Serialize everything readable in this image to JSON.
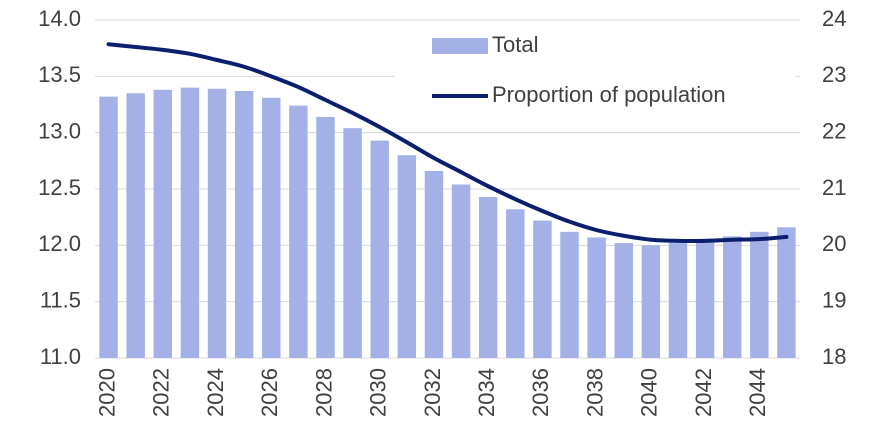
{
  "chart_data": {
    "type": "bar_line",
    "categories": [
      "2020",
      null,
      "2022",
      null,
      "2024",
      null,
      "2026",
      null,
      "2028",
      null,
      "2030",
      null,
      "2032",
      null,
      "2034",
      null,
      "2036",
      null,
      "2038",
      null,
      "2040",
      null,
      "2042",
      null,
      "2044",
      null
    ],
    "series": [
      {
        "name": "Total",
        "type": "bar",
        "color": "#a3b1e6",
        "values": [
          13.32,
          13.35,
          13.38,
          13.4,
          13.39,
          13.37,
          13.31,
          13.24,
          13.14,
          13.04,
          12.93,
          12.8,
          12.66,
          12.54,
          12.43,
          12.32,
          12.22,
          12.12,
          12.07,
          12.02,
          12.0,
          12.02,
          12.04,
          12.08,
          12.12,
          12.16
        ]
      },
      {
        "name": "Proportion of population",
        "type": "line",
        "axis": "y2",
        "color": "#0b1f6e",
        "values": [
          23.57,
          23.52,
          23.47,
          23.4,
          23.29,
          23.17,
          23.0,
          22.81,
          22.58,
          22.35,
          22.1,
          21.83,
          21.55,
          21.3,
          21.05,
          20.82,
          20.61,
          20.42,
          20.27,
          20.17,
          20.1,
          20.08,
          20.08,
          20.1,
          20.11,
          20.15
        ]
      }
    ],
    "ylim": [
      11,
      14
    ],
    "yticks": [
      {
        "value": 11,
        "label": "11.0"
      },
      11.5,
      {
        "value": 12,
        "label": "12.0"
      },
      12.5,
      {
        "value": 13,
        "label": "13.0"
      },
      13.5,
      {
        "value": 14,
        "label": "14.0"
      }
    ],
    "y2lim": [
      18,
      24
    ],
    "y2ticks": [
      18,
      19,
      20,
      21,
      22,
      23,
      24
    ],
    "grid": true,
    "legend": "top"
  }
}
